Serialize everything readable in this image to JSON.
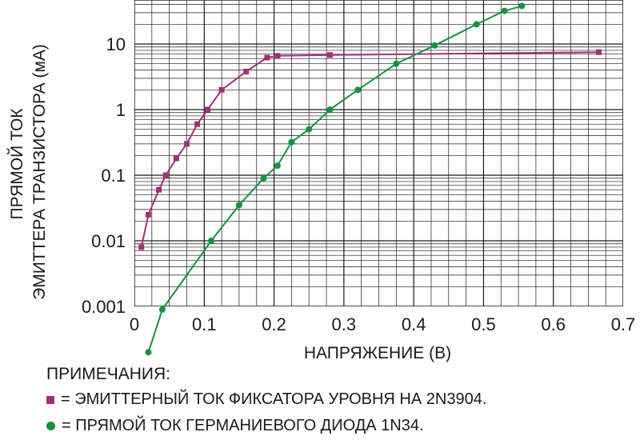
{
  "chart_data": {
    "type": "line",
    "xlabel": "НАПРЯЖЕНИЕ (В)",
    "ylabel_lines": [
      "ПРЯМОЙ ТОК",
      "ЭМИТТЕРА ТРАНЗИСТОРА (мА)"
    ],
    "xlim": [
      0,
      0.7
    ],
    "ylim": [
      0.001,
      50
    ],
    "y_scale": "log",
    "grid": true,
    "x_ticks": [
      "0",
      "0.1",
      "0.2",
      "0.3",
      "0.4",
      "0.5",
      "0.6",
      "0.7"
    ],
    "y_ticks": [
      "0.001",
      "0.01",
      "0.1",
      "1",
      "10"
    ],
    "series": [
      {
        "color": "#a0307a",
        "marker": "square",
        "x": [
          0.01,
          0.02,
          0.035,
          0.045,
          0.06,
          0.075,
          0.09,
          0.105,
          0.125,
          0.16,
          0.19,
          0.205,
          0.28,
          0.665
        ],
        "y": [
          0.008,
          0.025,
          0.06,
          0.1,
          0.18,
          0.3,
          0.6,
          1.0,
          2.0,
          3.8,
          6.2,
          6.6,
          6.8,
          7.5
        ]
      },
      {
        "color": "#16923e",
        "marker": "circle",
        "x": [
          0.02,
          0.04,
          0.11,
          0.15,
          0.185,
          0.205,
          0.225,
          0.25,
          0.28,
          0.32,
          0.375,
          0.43,
          0.49,
          0.53,
          0.555
        ],
        "y": [
          0.0002,
          0.0009,
          0.01,
          0.035,
          0.09,
          0.14,
          0.32,
          0.5,
          1.0,
          2.0,
          5.0,
          9.5,
          20,
          32,
          38
        ]
      }
    ]
  },
  "notes": {
    "title": "ПРИМЕЧАНИЯ:",
    "items": [
      {
        "text": "= ЭМИТТЕРНЫЙ ТОК ФИКСАТОРА УРОВНЯ НА 2N3904."
      },
      {
        "text": "= ПРЯМОЙ ТОК ГЕРМАНИЕВОГО ДИОДА 1N34."
      }
    ]
  }
}
